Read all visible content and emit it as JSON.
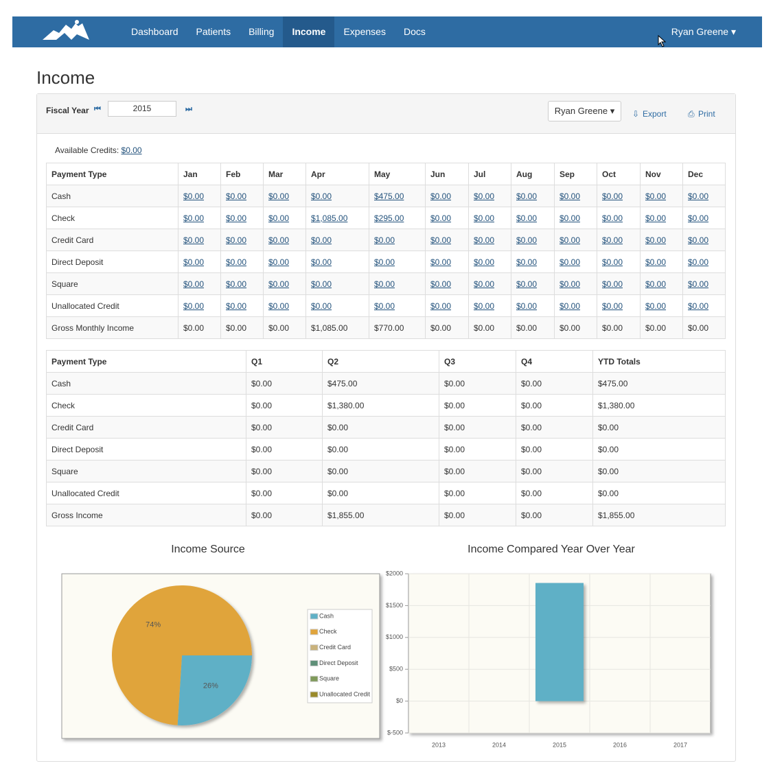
{
  "nav": {
    "items": [
      "Dashboard",
      "Patients",
      "Billing",
      "Income",
      "Expenses",
      "Docs"
    ],
    "active": 3,
    "user": "Ryan Greene"
  },
  "page_title": "Income",
  "toolbar": {
    "fiscal_year_label": "Fiscal Year",
    "year": "2015",
    "user": "Ryan Greene",
    "export": "Export",
    "print": "Print"
  },
  "credits": {
    "label": "Available Credits:",
    "value": "$0.00"
  },
  "monthly": {
    "header": [
      "Payment Type",
      "Jan",
      "Feb",
      "Mar",
      "Apr",
      "May",
      "Jun",
      "Jul",
      "Aug",
      "Sep",
      "Oct",
      "Nov",
      "Dec"
    ],
    "rows": [
      [
        "Cash",
        "$0.00",
        "$0.00",
        "$0.00",
        "$0.00",
        "$475.00",
        "$0.00",
        "$0.00",
        "$0.00",
        "$0.00",
        "$0.00",
        "$0.00",
        "$0.00"
      ],
      [
        "Check",
        "$0.00",
        "$0.00",
        "$0.00",
        "$1,085.00",
        "$295.00",
        "$0.00",
        "$0.00",
        "$0.00",
        "$0.00",
        "$0.00",
        "$0.00",
        "$0.00"
      ],
      [
        "Credit Card",
        "$0.00",
        "$0.00",
        "$0.00",
        "$0.00",
        "$0.00",
        "$0.00",
        "$0.00",
        "$0.00",
        "$0.00",
        "$0.00",
        "$0.00",
        "$0.00"
      ],
      [
        "Direct Deposit",
        "$0.00",
        "$0.00",
        "$0.00",
        "$0.00",
        "$0.00",
        "$0.00",
        "$0.00",
        "$0.00",
        "$0.00",
        "$0.00",
        "$0.00",
        "$0.00"
      ],
      [
        "Square",
        "$0.00",
        "$0.00",
        "$0.00",
        "$0.00",
        "$0.00",
        "$0.00",
        "$0.00",
        "$0.00",
        "$0.00",
        "$0.00",
        "$0.00",
        "$0.00"
      ],
      [
        "Unallocated Credit",
        "$0.00",
        "$0.00",
        "$0.00",
        "$0.00",
        "$0.00",
        "$0.00",
        "$0.00",
        "$0.00",
        "$0.00",
        "$0.00",
        "$0.00",
        "$0.00"
      ],
      [
        "Gross Monthly Income",
        "$0.00",
        "$0.00",
        "$0.00",
        "$1,085.00",
        "$770.00",
        "$0.00",
        "$0.00",
        "$0.00",
        "$0.00",
        "$0.00",
        "$0.00",
        "$0.00"
      ]
    ]
  },
  "quarterly": {
    "header": [
      "Payment Type",
      "Q1",
      "Q2",
      "Q3",
      "Q4",
      "YTD Totals"
    ],
    "rows": [
      [
        "Cash",
        "$0.00",
        "$475.00",
        "$0.00",
        "$0.00",
        "$475.00"
      ],
      [
        "Check",
        "$0.00",
        "$1,380.00",
        "$0.00",
        "$0.00",
        "$1,380.00"
      ],
      [
        "Credit Card",
        "$0.00",
        "$0.00",
        "$0.00",
        "$0.00",
        "$0.00"
      ],
      [
        "Direct Deposit",
        "$0.00",
        "$0.00",
        "$0.00",
        "$0.00",
        "$0.00"
      ],
      [
        "Square",
        "$0.00",
        "$0.00",
        "$0.00",
        "$0.00",
        "$0.00"
      ],
      [
        "Unallocated Credit",
        "$0.00",
        "$0.00",
        "$0.00",
        "$0.00",
        "$0.00"
      ],
      [
        "Gross Income",
        "$0.00",
        "$1,855.00",
        "$0.00",
        "$0.00",
        "$1,855.00"
      ]
    ]
  },
  "charts": [
    {
      "type": "pie",
      "title": "Income Source",
      "categories": [
        "Cash",
        "Check",
        "Credit Card",
        "Direct Deposit",
        "Square",
        "Unallocated Credit"
      ],
      "values": [
        26,
        74,
        0,
        0,
        0,
        0
      ],
      "value_labels": [
        "26%",
        "74%",
        null,
        null,
        null,
        null
      ],
      "colors": [
        "#5fb0c6",
        "#e0a43b",
        "#c9b27c",
        "#5e8f78",
        "#7f9a5a",
        "#9a8a2a"
      ],
      "legend": "right"
    },
    {
      "type": "bar",
      "title": "Income Compared Year Over Year",
      "categories": [
        "2013",
        "2014",
        "2015",
        "2016",
        "2017"
      ],
      "values": [
        0,
        0,
        1855,
        0,
        0
      ],
      "color": "#5fb0c6",
      "ylim": [
        -500,
        2000
      ],
      "yticks": [
        {
          "value": -500,
          "label": "$-500"
        },
        {
          "value": 0,
          "label": "$0"
        },
        {
          "value": 500,
          "label": "$500"
        },
        {
          "value": 1000,
          "label": "$1000"
        },
        {
          "value": 1500,
          "label": "$1500"
        },
        {
          "value": 2000,
          "label": "$2000"
        }
      ],
      "grid": true
    }
  ]
}
